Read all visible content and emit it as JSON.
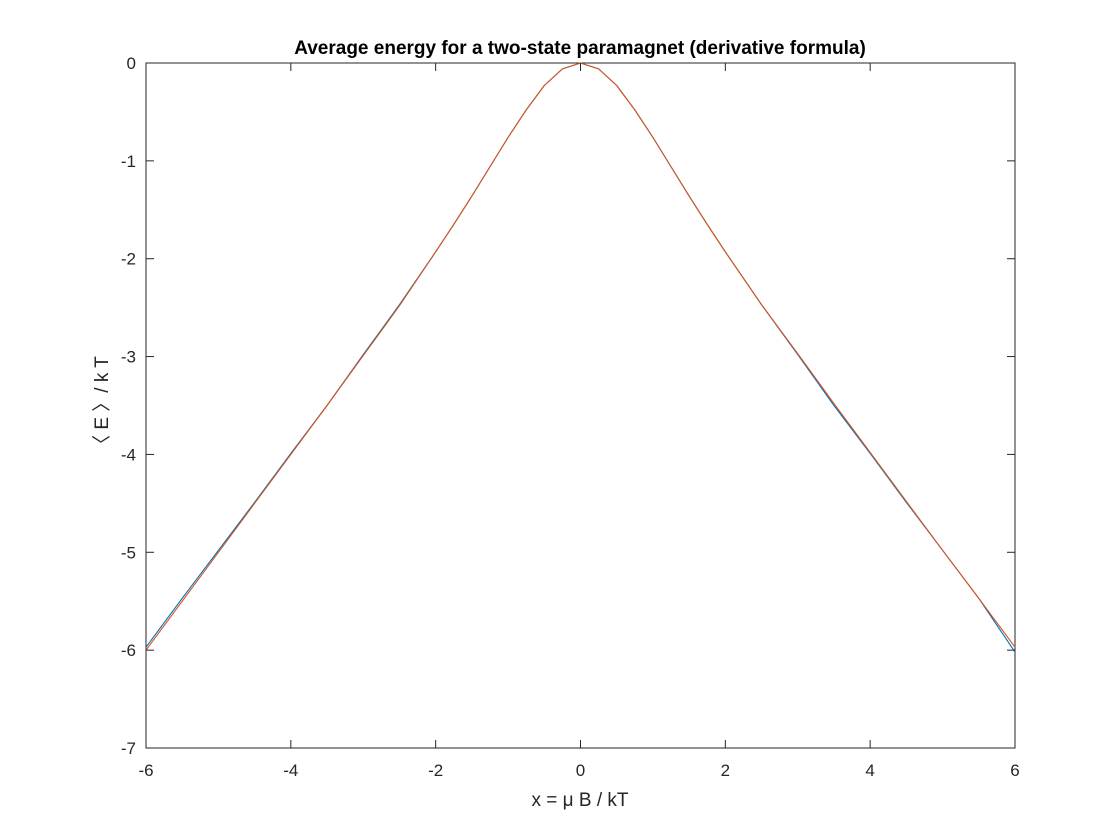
{
  "chart_data": {
    "type": "line",
    "title": "Average energy for a two-state paramagnet (derivative formula)",
    "xlabel": "x = μ B / kT",
    "ylabel": "〈 E 〉/ k T",
    "xlim": [
      -6,
      6
    ],
    "ylim": [
      -7,
      0
    ],
    "x_ticks": [
      -6,
      -4,
      -2,
      0,
      2,
      4,
      6
    ],
    "y_ticks": [
      0,
      -1,
      -2,
      -3,
      -4,
      -5,
      -6,
      -7
    ],
    "x_tick_labels": [
      "-6",
      "-4",
      "-2",
      "0",
      "2",
      "4",
      "6"
    ],
    "y_tick_labels": [
      "0",
      "-1",
      "-2",
      "-3",
      "-4",
      "-5",
      "-6",
      "-7"
    ],
    "grid": false,
    "legend": "none",
    "series": [
      {
        "color": "#0072BD",
        "x": [
          -6,
          -5.5,
          -5,
          -4.5,
          -4,
          -3.5,
          -3,
          -2.5,
          -2,
          -1.75,
          -1.5,
          -1.25,
          -1,
          -0.75,
          -0.5,
          -0.25,
          0,
          0.25,
          0.5,
          0.75,
          1,
          1.25,
          1.5,
          1.75,
          2,
          2.5,
          3,
          3.5,
          4,
          4.5,
          5,
          5.5,
          6
        ],
        "y": [
          -5.97,
          -5.47,
          -4.98,
          -4.49,
          -3.99,
          -3.5,
          -2.98,
          -2.47,
          -1.93,
          -1.65,
          -1.36,
          -1.06,
          -0.76,
          -0.48,
          -0.23,
          -0.06,
          0.0,
          -0.06,
          -0.23,
          -0.48,
          -0.76,
          -1.06,
          -1.36,
          -1.65,
          -1.93,
          -2.47,
          -2.98,
          -3.5,
          -3.99,
          -4.49,
          -4.98,
          -5.47,
          -6.02
        ]
      },
      {
        "color": "#D95319",
        "x": [
          -6,
          -5.5,
          -5,
          -4.5,
          -4,
          -3.5,
          -3,
          -2.5,
          -2,
          -1.75,
          -1.5,
          -1.25,
          -1,
          -0.75,
          -0.5,
          -0.25,
          0,
          0.25,
          0.5,
          0.75,
          1,
          1.25,
          1.5,
          1.75,
          2,
          2.5,
          3,
          3.5,
          4,
          4.5,
          5,
          5.5,
          6
        ],
        "y": [
          -6.0,
          -5.5,
          -5.0,
          -4.5,
          -4.0,
          -3.5,
          -2.99,
          -2.48,
          -1.93,
          -1.65,
          -1.36,
          -1.06,
          -0.76,
          -0.48,
          -0.23,
          -0.06,
          0.0,
          -0.06,
          -0.23,
          -0.48,
          -0.76,
          -1.06,
          -1.36,
          -1.65,
          -1.93,
          -2.47,
          -2.97,
          -3.48,
          -3.98,
          -4.48,
          -4.98,
          -5.47,
          -5.97
        ]
      }
    ]
  }
}
